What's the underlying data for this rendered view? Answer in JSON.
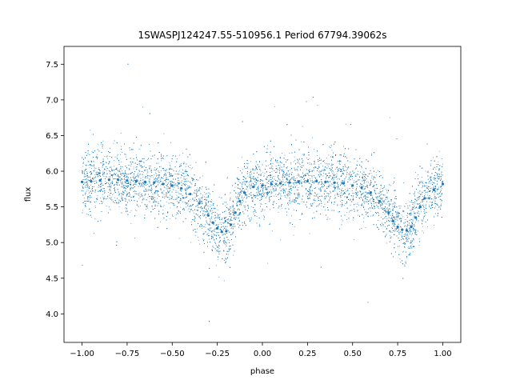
{
  "chart_data": {
    "type": "scatter",
    "title": "1SWASPJ124247.55-510956.1 Period 67794.39062s",
    "xlabel": "phase",
    "ylabel": "flux",
    "xlim": [
      -1.1,
      1.1
    ],
    "ylim": [
      3.6,
      7.75
    ],
    "x_ticks": [
      -1.0,
      -0.75,
      -0.5,
      -0.25,
      0.0,
      0.25,
      0.5,
      0.75,
      1.0
    ],
    "x_tick_labels": [
      "−1.00",
      "−0.75",
      "−0.50",
      "−0.25",
      "0.00",
      "0.25",
      "0.50",
      "0.75",
      "1.00"
    ],
    "y_ticks": [
      4.0,
      4.5,
      5.0,
      5.5,
      6.0,
      6.5,
      7.0,
      7.5
    ],
    "y_tick_labels": [
      "4.0",
      "4.5",
      "5.0",
      "5.5",
      "6.0",
      "6.5",
      "7.0",
      "7.5"
    ],
    "grid": false,
    "legend": "none",
    "marker_color": "#1f77b4",
    "series": [
      {
        "x": [
          -1.0,
          -0.95,
          -0.9,
          -0.85,
          -0.8,
          -0.75,
          -0.7,
          -0.65,
          -0.6,
          -0.55,
          -0.5,
          -0.45,
          -0.4,
          -0.35,
          -0.3,
          -0.275,
          -0.25,
          -0.225,
          -0.2,
          -0.175,
          -0.15,
          -0.125,
          -0.1,
          -0.05,
          0.0,
          0.05,
          0.1,
          0.15,
          0.2,
          0.25,
          0.3,
          0.35,
          0.4,
          0.45,
          0.5,
          0.55,
          0.6,
          0.65,
          0.7,
          0.725,
          0.75,
          0.775,
          0.8,
          0.825,
          0.85,
          0.875,
          0.9,
          0.95,
          1.0
        ],
        "y": [
          5.85,
          5.86,
          5.87,
          5.88,
          5.88,
          5.87,
          5.86,
          5.85,
          5.84,
          5.82,
          5.8,
          5.76,
          5.68,
          5.55,
          5.38,
          5.28,
          5.2,
          5.15,
          5.16,
          5.25,
          5.42,
          5.58,
          5.7,
          5.78,
          5.8,
          5.82,
          5.83,
          5.84,
          5.85,
          5.86,
          5.86,
          5.85,
          5.84,
          5.83,
          5.8,
          5.77,
          5.7,
          5.58,
          5.42,
          5.3,
          5.22,
          5.18,
          5.17,
          5.22,
          5.35,
          5.5,
          5.62,
          5.74,
          5.82
        ]
      }
    ]
  }
}
